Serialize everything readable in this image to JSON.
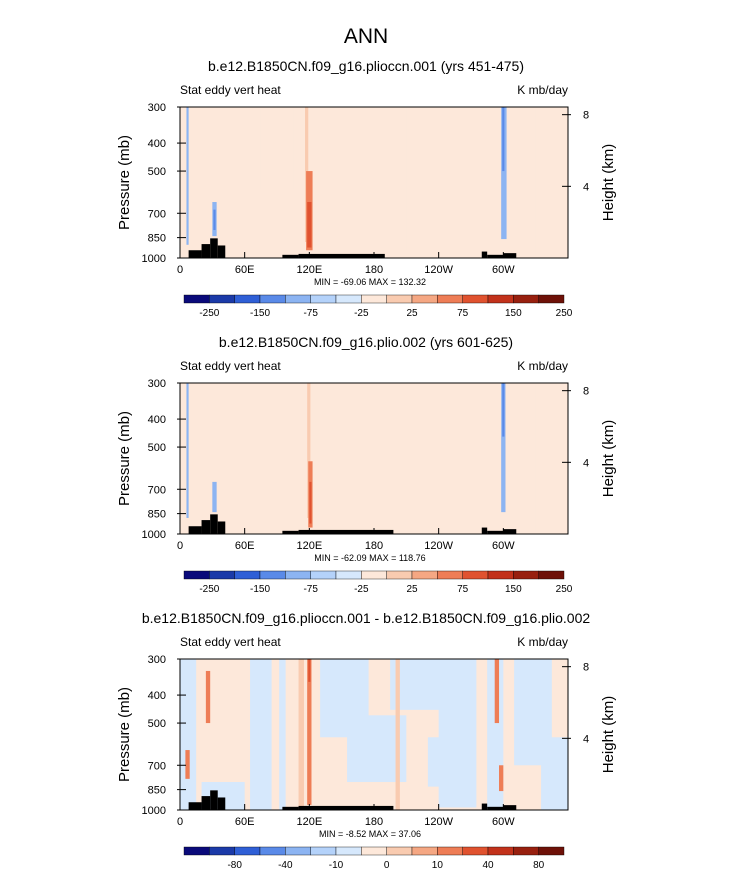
{
  "figure_title": "ANN",
  "colors": {
    "land": "#000000",
    "frame": "#000000"
  },
  "chart_data": [
    {
      "type": "heatmap",
      "title": "b.e12.B1850CN.f09_g16.plioccn.001 (yrs 451-475)",
      "left_label": "Stat eddy vert heat",
      "right_label": "K mb/day",
      "ylabel": "Pressure (mb)",
      "ylabel_right": "Height (km)",
      "x_ticks": [
        "0",
        "60E",
        "120E",
        "180",
        "120W",
        "60W"
      ],
      "x_tick_values": [
        0,
        60,
        120,
        180,
        240,
        300
      ],
      "xlim": [
        0,
        360
      ],
      "y_ticks": [
        "300",
        "400",
        "500",
        "700",
        "850",
        "1000"
      ],
      "y_tick_values": [
        300,
        400,
        500,
        700,
        850,
        1000
      ],
      "ylim": [
        1000,
        300
      ],
      "height_ticks": [
        "8",
        "4"
      ],
      "height_tick_values": [
        8,
        4
      ],
      "stats": "MIN = -69.06   MAX = 132.32",
      "colorbar_labels": [
        "-250",
        "-150",
        "-75",
        "-25",
        "25",
        "75",
        "150",
        "250"
      ],
      "colorbar_colors": [
        "#0a0a7a",
        "#1b3aa8",
        "#2f5fd6",
        "#5a8ae8",
        "#8cb4f2",
        "#b4d2fa",
        "#d6e8fc",
        "#fde8da",
        "#f9cbb0",
        "#f5a783",
        "#ee7d56",
        "#e0522f",
        "#c2321b",
        "#98200f",
        "#6e1108"
      ],
      "fields": [
        {
          "lon": [
            0,
            360
          ],
          "p": [
            300,
            1000
          ],
          "value": 15
        },
        {
          "lon": [
            5,
            18
          ],
          "p": [
            300,
            990
          ],
          "value": -15
        },
        {
          "lon": [
            48,
            72
          ],
          "p": [
            300,
            620
          ],
          "value": -15
        },
        {
          "lon": [
            75,
            105
          ],
          "p": [
            300,
            580
          ],
          "value": -15
        },
        {
          "lon": [
            0,
            360
          ],
          "p": [
            760,
            1000
          ],
          "value": -15
        },
        {
          "lon": [
            18,
            50
          ],
          "p": [
            600,
            990
          ],
          "value": 15
        },
        {
          "lon": [
            80,
            125
          ],
          "p": [
            620,
            880
          ],
          "value": 15
        },
        {
          "lon": [
            130,
            205
          ],
          "p": [
            300,
            900
          ],
          "value": 15
        },
        {
          "lon": [
            210,
            290
          ],
          "p": [
            300,
            940
          ],
          "value": 15
        },
        {
          "lon": [
            155,
            180
          ],
          "p": [
            900,
            990
          ],
          "value": 15
        },
        {
          "lon": [
            295,
            330
          ],
          "p": [
            300,
            990
          ],
          "value": -15
        },
        {
          "lon": [
            330,
            345
          ],
          "p": [
            300,
            760
          ],
          "value": 15
        },
        {
          "lon": [
            116,
            119
          ],
          "p": [
            300,
            880
          ],
          "value": 30
        },
        {
          "lon": [
            117,
            123
          ],
          "p": [
            500,
            940
          ],
          "value": 60
        },
        {
          "lon": [
            118,
            122
          ],
          "p": [
            640,
            920
          ],
          "value": 110
        },
        {
          "lon": [
            30,
            34
          ],
          "p": [
            640,
            840
          ],
          "value": -40
        },
        {
          "lon": [
            31,
            33
          ],
          "p": [
            680,
            800
          ],
          "value": -80
        },
        {
          "lon": [
            206,
            210
          ],
          "p": [
            300,
            1000
          ],
          "value": -15
        },
        {
          "lon": [
            222,
            226
          ],
          "p": [
            300,
            1000
          ],
          "value": -15
        },
        {
          "lon": [
            298,
            303
          ],
          "p": [
            300,
            860
          ],
          "value": -40
        },
        {
          "lon": [
            299,
            301
          ],
          "p": [
            300,
            500
          ],
          "value": -80
        },
        {
          "lon": [
            6,
            8
          ],
          "p": [
            300,
            900
          ],
          "value": -40
        }
      ],
      "land": [
        {
          "lon": [
            8,
            20
          ],
          "p": [
            940,
            1000
          ]
        },
        {
          "lon": [
            20,
            28
          ],
          "p": [
            895,
            1000
          ]
        },
        {
          "lon": [
            28,
            35
          ],
          "p": [
            855,
            1000
          ]
        },
        {
          "lon": [
            35,
            42
          ],
          "p": [
            905,
            1000
          ]
        },
        {
          "lon": [
            95,
            110
          ],
          "p": [
            975,
            1000
          ]
        },
        {
          "lon": [
            110,
            190
          ],
          "p": [
            968,
            1000
          ]
        },
        {
          "lon": [
            280,
            285
          ],
          "p": [
            950,
            1000
          ]
        },
        {
          "lon": [
            285,
            300
          ],
          "p": [
            975,
            1000
          ]
        },
        {
          "lon": [
            300,
            312
          ],
          "p": [
            962,
            1000
          ]
        }
      ]
    },
    {
      "type": "heatmap",
      "title": "b.e12.B1850CN.f09_g16.plio.002 (yrs 601-625)",
      "left_label": "Stat eddy vert heat",
      "right_label": "K mb/day",
      "ylabel": "Pressure (mb)",
      "ylabel_right": "Height (km)",
      "x_ticks": [
        "0",
        "60E",
        "120E",
        "180",
        "120W",
        "60W"
      ],
      "x_tick_values": [
        0,
        60,
        120,
        180,
        240,
        300
      ],
      "xlim": [
        0,
        360
      ],
      "y_ticks": [
        "300",
        "400",
        "500",
        "700",
        "850",
        "1000"
      ],
      "y_tick_values": [
        300,
        400,
        500,
        700,
        850,
        1000
      ],
      "ylim": [
        1000,
        300
      ],
      "height_ticks": [
        "8",
        "4"
      ],
      "height_tick_values": [
        8,
        4
      ],
      "stats": "MIN = -62.09   MAX = 118.76",
      "colorbar_labels": [
        "-250",
        "-150",
        "-75",
        "-25",
        "25",
        "75",
        "150",
        "250"
      ],
      "colorbar_colors": [
        "#0a0a7a",
        "#1b3aa8",
        "#2f5fd6",
        "#5a8ae8",
        "#8cb4f2",
        "#b4d2fa",
        "#d6e8fc",
        "#fde8da",
        "#f9cbb0",
        "#f5a783",
        "#ee7d56",
        "#e0522f",
        "#c2321b",
        "#98200f",
        "#6e1108"
      ],
      "fields": [
        {
          "lon": [
            0,
            360
          ],
          "p": [
            300,
            1000
          ],
          "value": 15
        },
        {
          "lon": [
            0,
            95
          ],
          "p": [
            300,
            560
          ],
          "value": -15
        },
        {
          "lon": [
            0,
            18
          ],
          "p": [
            300,
            990
          ],
          "value": -15
        },
        {
          "lon": [
            0,
            360
          ],
          "p": [
            800,
            1000
          ],
          "value": -15
        },
        {
          "lon": [
            20,
            55
          ],
          "p": [
            580,
            990
          ],
          "value": 15
        },
        {
          "lon": [
            60,
            130
          ],
          "p": [
            620,
            860
          ],
          "value": 15
        },
        {
          "lon": [
            140,
            200
          ],
          "p": [
            860,
            990
          ],
          "value": 15
        },
        {
          "lon": [
            290,
            330
          ],
          "p": [
            300,
            990
          ],
          "value": -15
        },
        {
          "lon": [
            335,
            348
          ],
          "p": [
            300,
            720
          ],
          "value": 15
        },
        {
          "lon": [
            118,
            121
          ],
          "p": [
            300,
            880
          ],
          "value": 30
        },
        {
          "lon": [
            119,
            123
          ],
          "p": [
            560,
            950
          ],
          "value": 60
        },
        {
          "lon": [
            120,
            122
          ],
          "p": [
            660,
            920
          ],
          "value": 100
        },
        {
          "lon": [
            30,
            34
          ],
          "p": [
            660,
            840
          ],
          "value": -40
        },
        {
          "lon": [
            298,
            302
          ],
          "p": [
            300,
            840
          ],
          "value": -40
        },
        {
          "lon": [
            299,
            301
          ],
          "p": [
            300,
            460
          ],
          "value": -80
        },
        {
          "lon": [
            6,
            8
          ],
          "p": [
            300,
            880
          ],
          "value": -40
        }
      ],
      "land": [
        {
          "lon": [
            8,
            20
          ],
          "p": [
            940,
            1000
          ]
        },
        {
          "lon": [
            20,
            28
          ],
          "p": [
            895,
            1000
          ]
        },
        {
          "lon": [
            28,
            35
          ],
          "p": [
            855,
            1000
          ]
        },
        {
          "lon": [
            35,
            42
          ],
          "p": [
            905,
            1000
          ]
        },
        {
          "lon": [
            95,
            110
          ],
          "p": [
            975,
            1000
          ]
        },
        {
          "lon": [
            110,
            198
          ],
          "p": [
            968,
            1000
          ]
        },
        {
          "lon": [
            280,
            285
          ],
          "p": [
            950,
            1000
          ]
        },
        {
          "lon": [
            285,
            300
          ],
          "p": [
            975,
            1000
          ]
        },
        {
          "lon": [
            300,
            312
          ],
          "p": [
            962,
            1000
          ]
        }
      ]
    },
    {
      "type": "heatmap",
      "title": "b.e12.B1850CN.f09_g16.plioccn.001 - b.e12.B1850CN.f09_g16.plio.002",
      "left_label": "Stat eddy vert heat",
      "right_label": "K mb/day",
      "ylabel": "Pressure (mb)",
      "ylabel_right": "Height (km)",
      "x_ticks": [
        "0",
        "60E",
        "120E",
        "180",
        "120W",
        "60W"
      ],
      "x_tick_values": [
        0,
        60,
        120,
        180,
        240,
        300
      ],
      "xlim": [
        0,
        360
      ],
      "y_ticks": [
        "300",
        "400",
        "500",
        "700",
        "850",
        "1000"
      ],
      "y_tick_values": [
        300,
        400,
        500,
        700,
        850,
        1000
      ],
      "ylim": [
        1000,
        300
      ],
      "height_ticks": [
        "8",
        "4"
      ],
      "height_tick_values": [
        8,
        4
      ],
      "stats": "MIN = -8.52   MAX = 37.06",
      "colorbar_labels": [
        "-80",
        "-40",
        "-10",
        "0",
        "10",
        "40",
        "80"
      ],
      "colorbar_colors": [
        "#0a0a7a",
        "#1b3aa8",
        "#2f5fd6",
        "#5a8ae8",
        "#8cb4f2",
        "#b4d2fa",
        "#d6e8fc",
        "#fde8da",
        "#f9cbb0",
        "#f5a783",
        "#ee7d56",
        "#e0522f",
        "#c2321b",
        "#98200f",
        "#6e1108"
      ],
      "fields": [
        {
          "lon": [
            0,
            360
          ],
          "p": [
            300,
            1000
          ],
          "value": 2
        },
        {
          "lon": [
            0,
            15
          ],
          "p": [
            300,
            1000
          ],
          "value": -2
        },
        {
          "lon": [
            65,
            85
          ],
          "p": [
            300,
            1000
          ],
          "value": -2
        },
        {
          "lon": [
            92,
            98
          ],
          "p": [
            300,
            1000
          ],
          "value": -2
        },
        {
          "lon": [
            130,
            175
          ],
          "p": [
            300,
            560
          ],
          "value": -2
        },
        {
          "lon": [
            155,
            210
          ],
          "p": [
            470,
            800
          ],
          "value": -2
        },
        {
          "lon": [
            195,
            245
          ],
          "p": [
            300,
            450
          ],
          "value": -2
        },
        {
          "lon": [
            230,
            255
          ],
          "p": [
            560,
            830
          ],
          "value": -2
        },
        {
          "lon": [
            240,
            275
          ],
          "p": [
            300,
            980
          ],
          "value": -2
        },
        {
          "lon": [
            285,
            300
          ],
          "p": [
            300,
            1000
          ],
          "value": -2
        },
        {
          "lon": [
            310,
            345
          ],
          "p": [
            300,
            700
          ],
          "value": -2
        },
        {
          "lon": [
            335,
            360
          ],
          "p": [
            560,
            1000
          ],
          "value": -2
        },
        {
          "lon": [
            20,
            60
          ],
          "p": [
            800,
            1000
          ],
          "value": -2
        },
        {
          "lon": [
            110,
            115
          ],
          "p": [
            300,
            1000
          ],
          "value": 8
        },
        {
          "lon": [
            118,
            122
          ],
          "p": [
            300,
            960
          ],
          "value": 25
        },
        {
          "lon": [
            119,
            121
          ],
          "p": [
            300,
            360
          ],
          "value": 35
        },
        {
          "lon": [
            24,
            28
          ],
          "p": [
            330,
            500
          ],
          "value": 20
        },
        {
          "lon": [
            5,
            9
          ],
          "p": [
            620,
            780
          ],
          "value": 20
        },
        {
          "lon": [
            200,
            204
          ],
          "p": [
            300,
            1000
          ],
          "value": 8
        },
        {
          "lon": [
            292,
            296
          ],
          "p": [
            300,
            500
          ],
          "value": 20
        },
        {
          "lon": [
            296,
            300
          ],
          "p": [
            700,
            860
          ],
          "value": 20
        }
      ],
      "land": [
        {
          "lon": [
            8,
            20
          ],
          "p": [
            940,
            1000
          ]
        },
        {
          "lon": [
            20,
            28
          ],
          "p": [
            895,
            1000
          ]
        },
        {
          "lon": [
            28,
            35
          ],
          "p": [
            855,
            1000
          ]
        },
        {
          "lon": [
            35,
            42
          ],
          "p": [
            905,
            1000
          ]
        },
        {
          "lon": [
            95,
            110
          ],
          "p": [
            975,
            1000
          ]
        },
        {
          "lon": [
            110,
            198
          ],
          "p": [
            968,
            1000
          ]
        },
        {
          "lon": [
            280,
            285
          ],
          "p": [
            950,
            1000
          ]
        },
        {
          "lon": [
            285,
            300
          ],
          "p": [
            975,
            1000
          ]
        },
        {
          "lon": [
            300,
            312
          ],
          "p": [
            962,
            1000
          ]
        }
      ]
    }
  ]
}
